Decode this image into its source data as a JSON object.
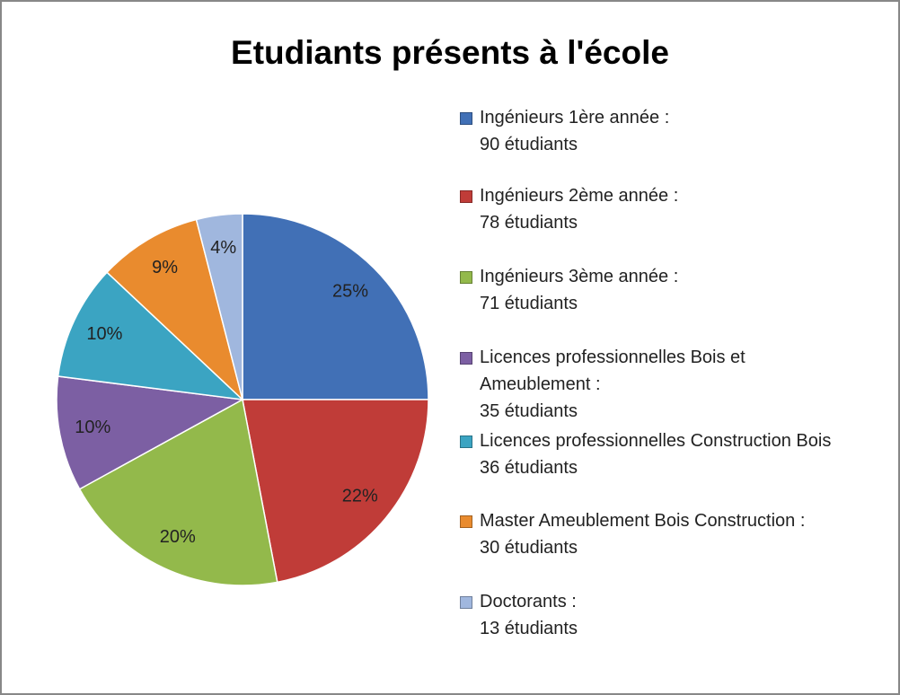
{
  "chart_data": {
    "type": "pie",
    "title": "Etudiants présents à l'école",
    "categories": [
      "Ingénieurs 1ère année :\n90 étudiants",
      "Ingénieurs 2ème année :\n78 étudiants",
      "Ingénieurs 3ème année :\n71 étudiants",
      "Licences professionnelles Bois et\nAmeublement :\n35 étudiants",
      "Licences professionnelles Construction Bois\n36 étudiants",
      "Master Ameublement Bois Construction :\n30 étudiants",
      "Doctorants :\n13 étudiants"
    ],
    "values": [
      25,
      22,
      20,
      10,
      10,
      9,
      4
    ],
    "value_labels": [
      "25%",
      "22%",
      "20%",
      "10%",
      "10%",
      "9%",
      "4%"
    ],
    "colors": [
      "#4170b6",
      "#c03c38",
      "#93b94b",
      "#7c5fa3",
      "#3ba4c2",
      "#e98b2e",
      "#a0b7de"
    ],
    "legend": "right"
  }
}
